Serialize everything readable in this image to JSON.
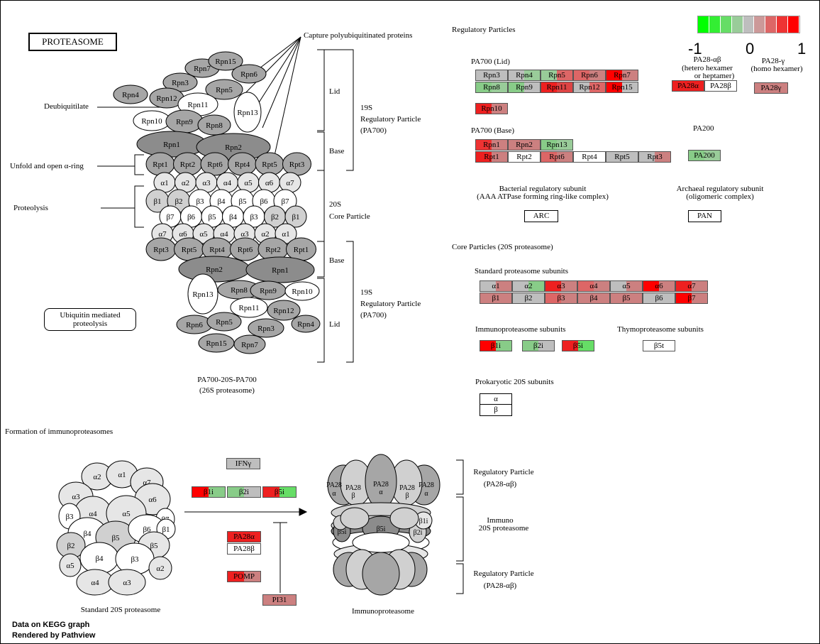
{
  "title": "PROTEASOME",
  "legend": {
    "min": "-1",
    "mid": "0",
    "max": "1",
    "colors": [
      "#00ff00",
      "#33ee33",
      "#66dd66",
      "#99cc99",
      "#bebebe",
      "#cc9999",
      "#dd6666",
      "#ee3333",
      "#ff0000"
    ]
  },
  "colors": {
    "gray_dark": "#8c8c8c",
    "gray_mid": "#a6a6a6",
    "gray_light": "#d0d0d0",
    "gray_pale": "#e6e6e6",
    "red": "#e82020",
    "pink": "#cc8080",
    "green": "#88cc88",
    "grey_box": "#bebebe"
  },
  "labels": {
    "capture": "Capture polyubiquitinated proteins",
    "deubiquitilate": "Deubiquitilate",
    "unfold": "Unfold and open α-ring",
    "proteolysis": "Proteolysis",
    "ubiquitin_mediated": "Ubiquitin mediated proteolysis",
    "lid": "Lid",
    "base": "Base",
    "rp19s": "19S",
    "rp19s_name": "Regulatory Particle",
    "rp19s_pa": "(PA700)",
    "cp20s": "20S",
    "cp20s_name": "Core Particle",
    "pa700_20s": "PA700-20S-PA700",
    "proteasome26s": "(26S proteasome)",
    "regulatory_particles": "Regulatory Particles",
    "pa700_lid": "PA700 (Lid)",
    "pa700_base": "PA700 (Base)",
    "pa28ab": "PA28-αβ",
    "pa28ab_desc1": "(hetero hexamer",
    "pa28ab_desc2": "or heptamer)",
    "pa28g": "PA28-γ",
    "pa28g_desc": "(homo hexamer)",
    "pa200": "PA200",
    "bacterial": "Bacterial regulatory subunit",
    "bacterial_desc": "(AAA ATPase forming ring-like complex)",
    "archaeal": "Archaeal regulatory subunit",
    "archaeal_desc": "(oligomeric complex)",
    "arc": "ARC",
    "pan": "PAN",
    "core_particles": "Core Particles (20S proteasome)",
    "standard_subunits": "Standard proteasome subunits",
    "immuno_subunits": "Immunoproteasome subunits",
    "thymo_subunits": "Thymoproteasome subunits",
    "prokaryotic": "Prokaryotic 20S subunits",
    "pro_alpha": "α",
    "pro_beta": "β",
    "formation": "Formation of immunoproteasomes",
    "standard20s": "Standard 20S proteasome",
    "immunoproteasome": "Immunoproteasome",
    "rp_pa28": "Regulatory Particle",
    "rp_pa28_sub": "(PA28-αβ)",
    "immuno20s": "Immuno",
    "immuno20s_sub": "20S proteasome",
    "footer1": "Data on KEGG graph",
    "footer2": "Rendered by Pathview"
  },
  "gene_boxes": [
    {
      "label": "Rpn3",
      "split": [
        "#bebebe",
        "#bebebe"
      ]
    },
    {
      "label": "Rpn4",
      "split": [
        "#bebebe",
        "#99cc99"
      ]
    },
    {
      "label": "Rpn5",
      "split": [
        "#99cc99",
        "#dd6666"
      ]
    },
    {
      "label": "Rpn6",
      "split": [
        "#dd6666",
        "#cc8080"
      ]
    },
    {
      "label": "Rpn7",
      "split": [
        "#ff0000",
        "#cc8080"
      ]
    },
    {
      "label": "Rpn8",
      "split": [
        "#88cc88",
        "#99cc99"
      ]
    },
    {
      "label": "Rpn9",
      "split": [
        "#88cc88",
        "#bebebe"
      ]
    },
    {
      "label": "Rpn11",
      "split": [
        "#ee2020",
        "#dd4444"
      ]
    },
    {
      "label": "Rpn12",
      "split": [
        "#bebebe",
        "#dd6666"
      ]
    },
    {
      "label": "Rpn15",
      "split": [
        "#ff0000",
        "#bebebe"
      ]
    },
    {
      "label": "Rpn10",
      "split": [
        "#ee2020",
        "#cc8080"
      ]
    },
    {
      "label": "PA28α",
      "split": [
        "#ee2020",
        "#ee2020"
      ]
    },
    {
      "label": "PA28β",
      "split": [
        "#ffffff",
        "#ffffff"
      ]
    },
    {
      "label": "PA28γ",
      "split": [
        "#cc8080",
        "#cc8080"
      ]
    },
    {
      "label": "Rpn1",
      "split": [
        "#ee3333",
        "#cc8080"
      ]
    },
    {
      "label": "Rpn2",
      "split": [
        "#cc8080",
        "#cc8080"
      ]
    },
    {
      "label": "Rpn13",
      "split": [
        "#88cc88",
        "#99cc99"
      ]
    },
    {
      "label": "Rpt1",
      "split": [
        "#ee2020",
        "#cc8080"
      ]
    },
    {
      "label": "Rpt2",
      "split": [
        "#ffffff",
        "#ffffff"
      ]
    },
    {
      "label": "Rpt6",
      "split": [
        "#dd6666",
        "#cc8080"
      ]
    },
    {
      "label": "Rpt4",
      "split": [
        "#ffffff",
        "#ffffff"
      ]
    },
    {
      "label": "Rpt5",
      "split": [
        "#bebebe",
        "#bebebe"
      ]
    },
    {
      "label": "Rpt3",
      "split": [
        "#bebebe",
        "#cc8080"
      ]
    },
    {
      "label": "PA200",
      "split": [
        "#88cc88",
        "#99cc99"
      ]
    },
    {
      "label": "α1",
      "split": [
        "#bebebe",
        "#cc8080"
      ]
    },
    {
      "label": "α2",
      "split": [
        "#bebebe",
        "#88cc88"
      ]
    },
    {
      "label": "α3",
      "split": [
        "#ee2020",
        "#cc8080"
      ]
    },
    {
      "label": "α4",
      "split": [
        "#dd6666",
        "#cc8080"
      ]
    },
    {
      "label": "α5",
      "split": [
        "#bebebe",
        "#cc8080"
      ]
    },
    {
      "label": "α6",
      "split": [
        "#ff0000",
        "#cc8080"
      ]
    },
    {
      "label": "α7",
      "split": [
        "#ee2020",
        "#cc8080"
      ]
    },
    {
      "label": "β1",
      "split": [
        "#cc8080",
        "#cc8080"
      ]
    },
    {
      "label": "β2",
      "split": [
        "#bebebe",
        "#bebebe"
      ]
    },
    {
      "label": "β3",
      "split": [
        "#dd6666",
        "#cc8080"
      ]
    },
    {
      "label": "β4",
      "split": [
        "#cc8080",
        "#cc8080"
      ]
    },
    {
      "label": "β5",
      "split": [
        "#cc8080",
        "#cc8080"
      ]
    },
    {
      "label": "β6",
      "split": [
        "#bebebe",
        "#bebebe"
      ]
    },
    {
      "label": "β7",
      "split": [
        "#ff0000",
        "#cc8080"
      ]
    },
    {
      "label": "β1i",
      "split": [
        "#ff0000",
        "#88cc88"
      ]
    },
    {
      "label": "β2i",
      "split": [
        "#88cc88",
        "#bebebe"
      ]
    },
    {
      "label": "β5i",
      "split": [
        "#ee2020",
        "#66dd66"
      ]
    },
    {
      "label": "β5t",
      "split": [
        "#ffffff",
        "#ffffff"
      ]
    },
    {
      "label": "IFNγ",
      "split": [
        "#bebebe",
        "#bebebe"
      ]
    },
    {
      "label": "β1i",
      "split": [
        "#ff0000",
        "#88cc88"
      ]
    },
    {
      "label": "β2i",
      "split": [
        "#88cc88",
        "#bebebe"
      ]
    },
    {
      "label": "β5i",
      "split": [
        "#ee2020",
        "#66dd66"
      ]
    },
    {
      "label": "PA28α",
      "split": [
        "#ee2020",
        "#ee2020"
      ]
    },
    {
      "label": "PA28β",
      "split": [
        "#ffffff",
        "#ffffff"
      ]
    },
    {
      "label": "POMP",
      "split": [
        "#ee2020",
        "#cc8080"
      ]
    },
    {
      "label": "PI31",
      "split": [
        "#cc8080",
        "#cc8080"
      ]
    }
  ],
  "proteasome_26s": {
    "top_lid": [
      {
        "label": "Rpn7",
        "fill": "#a6a6a6"
      },
      {
        "label": "Rpn15",
        "fill": "#a6a6a6"
      },
      {
        "label": "Rpn6",
        "fill": "#a6a6a6"
      },
      {
        "label": "Rpn3",
        "fill": "#a6a6a6"
      },
      {
        "label": "Rpn4",
        "fill": "#a6a6a6"
      },
      {
        "label": "Rpn12",
        "fill": "#a6a6a6"
      },
      {
        "label": "Rpn5",
        "fill": "#a6a6a6"
      },
      {
        "label": "Rpn11",
        "fill": "#ffffff"
      },
      {
        "label": "Rpn13",
        "fill": "#ffffff"
      },
      {
        "label": "Rpn10",
        "fill": "#ffffff"
      },
      {
        "label": "Rpn9",
        "fill": "#a6a6a6"
      },
      {
        "label": "Rpn8",
        "fill": "#a6a6a6"
      }
    ],
    "top_base": [
      {
        "label": "Rpn1"
      },
      {
        "label": "Rpn2"
      }
    ],
    "top_rpt": [
      "Rpt1",
      "Rpt2",
      "Rpt6",
      "Rpt4",
      "Rpt5",
      "Rpt3"
    ],
    "alpha_top": [
      "α1",
      "α2",
      "α3",
      "α4",
      "α5",
      "α6",
      "α7"
    ],
    "beta_top": [
      "β1",
      "β2",
      "β3",
      "β4",
      "β5",
      "β6",
      "β7"
    ],
    "beta_bottom": [
      "β7",
      "β6",
      "β5",
      "β4",
      "β3",
      "β2",
      "β1"
    ],
    "alpha_bottom": [
      "α7",
      "α6",
      "α5",
      "α4",
      "α3",
      "α2",
      "α1"
    ],
    "bottom_rpt": [
      "Rpt3",
      "Rpt5",
      "Rpt4",
      "Rpt6",
      "Rpt2",
      "Rpt1"
    ],
    "bottom_base": [
      {
        "label": "Rpn2"
      },
      {
        "label": "Rpn1"
      }
    ],
    "bottom_lid": [
      {
        "label": "Rpn13",
        "fill": "#ffffff"
      },
      {
        "label": "Rpn8",
        "fill": "#a6a6a6"
      },
      {
        "label": "Rpn9",
        "fill": "#a6a6a6"
      },
      {
        "label": "Rpn10",
        "fill": "#ffffff"
      },
      {
        "label": "Rpn11",
        "fill": "#ffffff"
      },
      {
        "label": "Rpn12",
        "fill": "#a6a6a6"
      },
      {
        "label": "Rpn6",
        "fill": "#a6a6a6"
      },
      {
        "label": "Rpn5",
        "fill": "#a6a6a6"
      },
      {
        "label": "Rpn3",
        "fill": "#a6a6a6"
      },
      {
        "label": "Rpn4",
        "fill": "#a6a6a6"
      },
      {
        "label": "Rpn15",
        "fill": "#a6a6a6"
      },
      {
        "label": "Rpn7",
        "fill": "#a6a6a6"
      }
    ]
  },
  "standard_20s": {
    "top": [
      "α2",
      "α1",
      "α7",
      "α3",
      "α6",
      "α4",
      "α5",
      "β3",
      "β7",
      "β4",
      "β5",
      "β6",
      "β1",
      "β5",
      "β2",
      "β4",
      "β3",
      "α5",
      "α2",
      "α4",
      "α3"
    ]
  },
  "immuno_structure": {
    "labels": [
      "PA28 α",
      "PA28 α",
      "PA28 β",
      "PA28 α",
      "PA28 β",
      "PA28 α",
      "β5i",
      "β5i",
      "β2i",
      "β1i"
    ]
  }
}
